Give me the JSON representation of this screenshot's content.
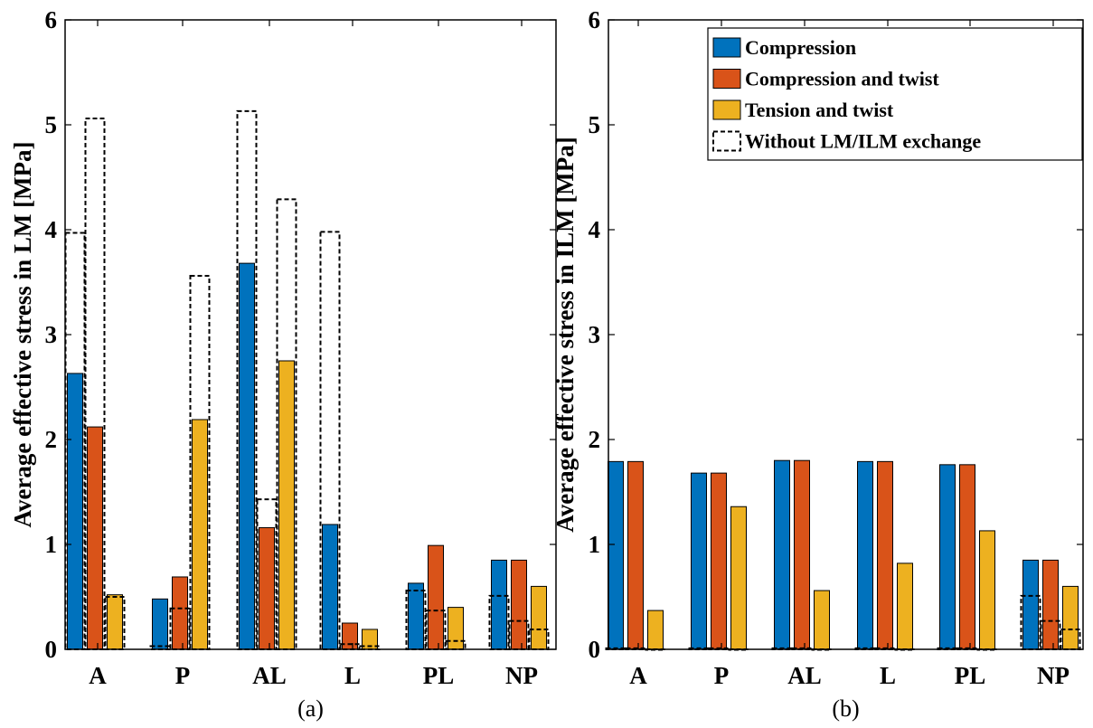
{
  "chart_data": [
    {
      "type": "bar",
      "panel_label": "(a)",
      "ylabel": "Average effective stress in LM [MPa]",
      "xlabel": "",
      "ylim": [
        0,
        6
      ],
      "yticks": [
        "0",
        "1",
        "2",
        "3",
        "4",
        "5",
        "6"
      ],
      "categories": [
        "A",
        "P",
        "AL",
        "L",
        "PL",
        "NP"
      ],
      "series": [
        {
          "name": "Compression",
          "color": "#0072BD",
          "values": [
            2.63,
            0.48,
            3.68,
            1.19,
            0.63,
            0.85
          ]
        },
        {
          "name": "Compression and twist",
          "color": "#D95319",
          "values": [
            2.12,
            0.69,
            1.16,
            0.25,
            0.99,
            0.85
          ]
        },
        {
          "name": "Tension and twist",
          "color": "#EDB120",
          "values": [
            0.52,
            2.19,
            2.75,
            0.19,
            0.4,
            0.6
          ]
        },
        {
          "name": "Without LM/ILM exchange",
          "style": "dashed-outline",
          "values": [
            [
              3.97,
              5.06,
              0.5
            ],
            [
              0.03,
              0.39,
              3.56
            ],
            [
              5.13,
              1.43,
              4.29
            ],
            [
              3.98,
              0.05,
              0.03
            ],
            [
              0.56,
              0.37,
              0.08
            ],
            [
              0.51,
              0.27,
              0.19
            ]
          ]
        }
      ],
      "grid": false
    },
    {
      "type": "bar",
      "panel_label": "(b)",
      "ylabel": "Average effective stress in ILM [MPa]",
      "xlabel": "",
      "ylim": [
        0,
        6
      ],
      "yticks": [
        "0",
        "1",
        "2",
        "3",
        "4",
        "5",
        "6"
      ],
      "categories": [
        "A",
        "P",
        "AL",
        "L",
        "PL",
        "NP"
      ],
      "series": [
        {
          "name": "Compression",
          "color": "#0072BD",
          "values": [
            1.79,
            1.68,
            1.8,
            1.79,
            1.76,
            0.85
          ]
        },
        {
          "name": "Compression and twist",
          "color": "#D95319",
          "values": [
            1.79,
            1.68,
            1.8,
            1.79,
            1.76,
            0.85
          ]
        },
        {
          "name": "Tension and twist",
          "color": "#EDB120",
          "values": [
            0.37,
            1.36,
            0.56,
            0.82,
            1.13,
            0.6
          ]
        },
        {
          "name": "Without LM/ILM exchange",
          "style": "dashed-outline",
          "values": [
            [
              0.01,
              0.01,
              0.0
            ],
            [
              0.01,
              0.01,
              0.0
            ],
            [
              0.01,
              0.01,
              0.0
            ],
            [
              0.01,
              0.01,
              0.0
            ],
            [
              0.01,
              0.01,
              0.0
            ],
            [
              0.51,
              0.27,
              0.19
            ]
          ]
        }
      ],
      "grid": false,
      "legend": {
        "placement": "top-right",
        "entries": [
          "Compression",
          "Compression and twist",
          "Tension and twist",
          "Without LM/ILM exchange"
        ]
      }
    }
  ]
}
